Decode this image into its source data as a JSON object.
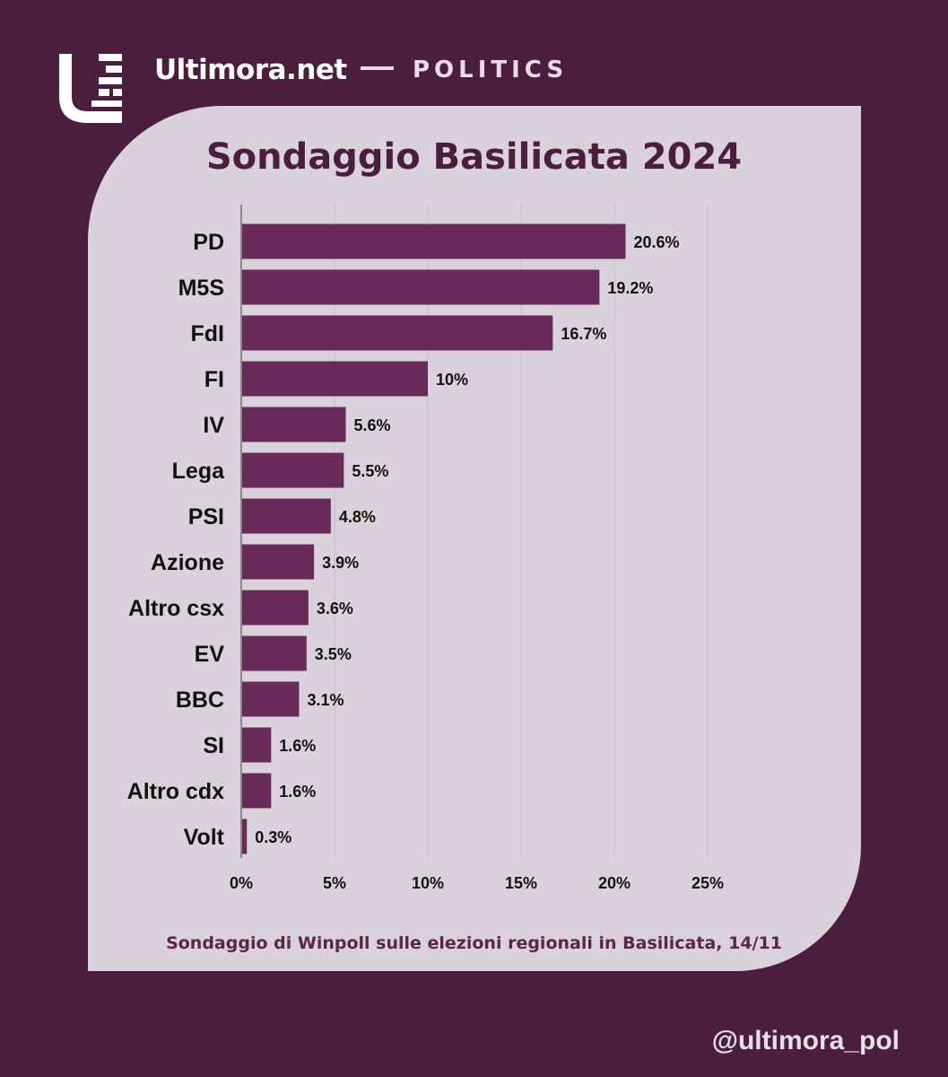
{
  "brand": {
    "site": "Ultimora.net",
    "section": "POLITICS",
    "logo_icon": "ultimora-u-logo-icon"
  },
  "colors": {
    "background": "#4a1e3c",
    "card": "#dad2da",
    "bar": "#692a59"
  },
  "chart_data": {
    "type": "bar",
    "orientation": "horizontal",
    "title": "Sondaggio Basilicata 2024",
    "categories": [
      "PD",
      "M5S",
      "FdI",
      "FI",
      "IV",
      "Lega",
      "PSI",
      "Azione",
      "Altro csx",
      "EV",
      "BBC",
      "SI",
      "Altro cdx",
      "Volt"
    ],
    "values": [
      20.6,
      19.2,
      16.7,
      10,
      5.6,
      5.5,
      4.8,
      3.9,
      3.6,
      3.5,
      3.1,
      1.6,
      1.6,
      0.3
    ],
    "value_labels": [
      "20.6%",
      "19.2%",
      "16.7%",
      "10%",
      "5.6%",
      "5.5%",
      "4.8%",
      "3.9%",
      "3.6%",
      "3.5%",
      "3.1%",
      "1.6%",
      "1.6%",
      "0.3%"
    ],
    "xlim": [
      0,
      25
    ],
    "xticks": [
      0,
      5,
      10,
      15,
      20,
      25
    ],
    "xtick_labels": [
      "0%",
      "5%",
      "10%",
      "15%",
      "20%",
      "25%"
    ],
    "xlabel": "",
    "ylabel": "",
    "grid": true
  },
  "caption": "Sondaggio di Winpoll sulle elezioni regionali in Basilicata, 14/11",
  "handle": "@ultimora_pol"
}
